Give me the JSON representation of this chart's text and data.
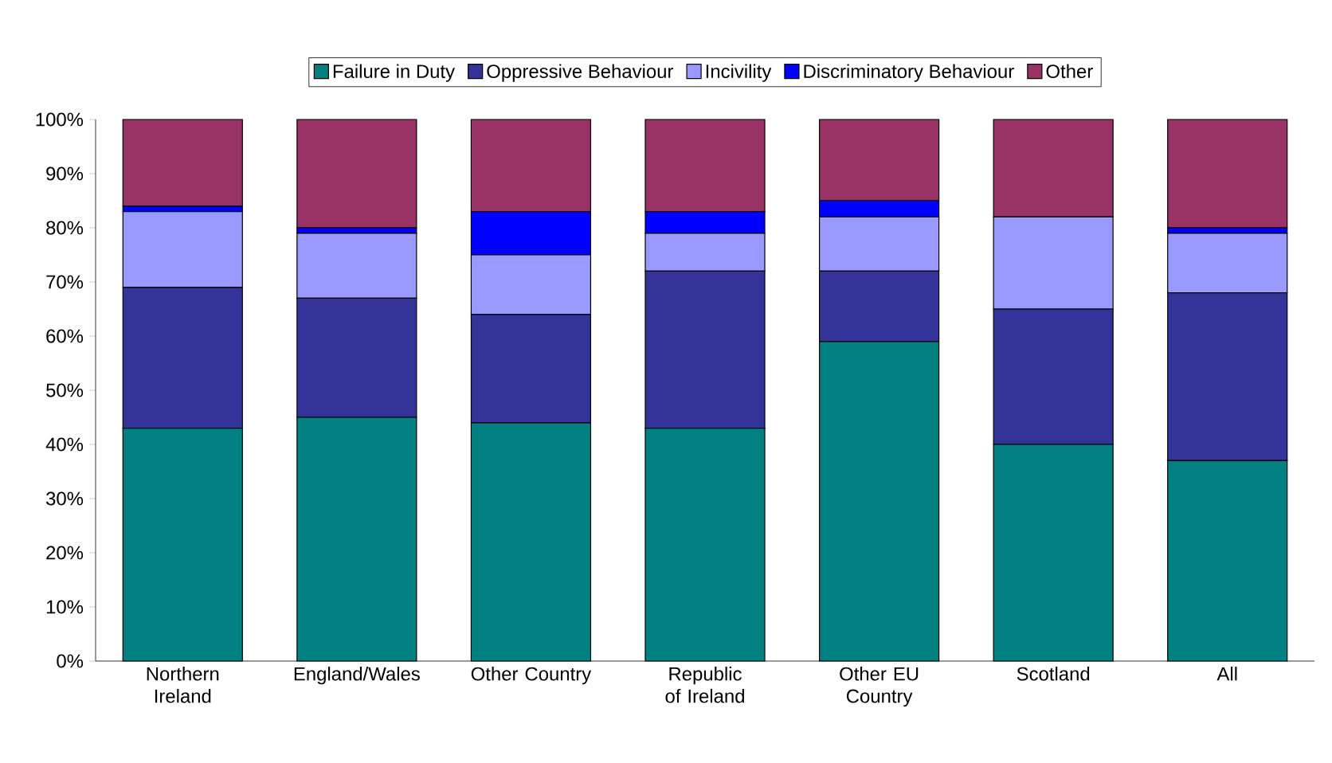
{
  "chart_data": {
    "type": "bar",
    "stacked": true,
    "legend": "top",
    "categories": [
      "Northern Ireland",
      "England/Wales",
      "Other Country",
      "Republic of Ireland",
      "Other EU Country",
      "Scotland",
      "All"
    ],
    "ylim": [
      0,
      100
    ],
    "yticks": [
      {
        "value": 0,
        "label": "0%"
      },
      {
        "value": 10,
        "label": "10%"
      },
      {
        "value": 20,
        "label": "20%"
      },
      {
        "value": 30,
        "label": "30%"
      },
      {
        "value": 40,
        "label": "40%"
      },
      {
        "value": 50,
        "label": "50%"
      },
      {
        "value": 60,
        "label": "60%"
      },
      {
        "value": 70,
        "label": "70%"
      },
      {
        "value": 80,
        "label": "80%"
      },
      {
        "value": 90,
        "label": "90%"
      },
      {
        "value": 100,
        "label": "100%"
      }
    ],
    "series": [
      {
        "name": "Failure in Duty",
        "color": "#008080",
        "values": [
          43,
          45,
          44,
          43,
          59,
          40,
          37
        ]
      },
      {
        "name": "Oppressive Behaviour",
        "color": "#333399",
        "values": [
          26,
          22,
          20,
          29,
          13,
          25,
          31
        ]
      },
      {
        "name": "Incivility",
        "color": "#9999ff",
        "values": [
          14,
          12,
          11,
          7,
          10,
          17,
          11
        ]
      },
      {
        "name": "Discriminatory Behaviour",
        "color": "#0000ff",
        "values": [
          1,
          1,
          8,
          4,
          3,
          0,
          1
        ]
      },
      {
        "name": "Other",
        "color": "#993366",
        "values": [
          16,
          20,
          17,
          17,
          15,
          18,
          20
        ]
      }
    ]
  }
}
